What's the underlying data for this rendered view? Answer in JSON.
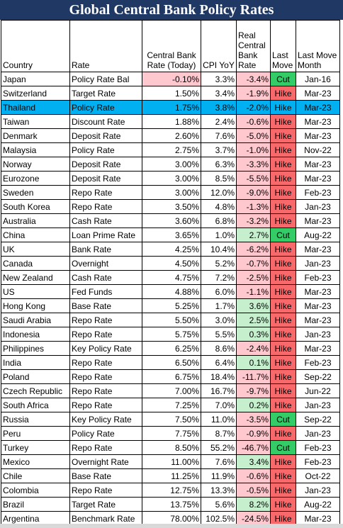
{
  "title": "Global Central Bank Policy Rates",
  "headers": {
    "country": "Country",
    "rate": "Rate",
    "cb_rate": "Central Bank Rate (Today)",
    "cpi": "CPI YoY",
    "real_rate": "Real Central Bank Rate",
    "last_move": "Last Move",
    "last_move_month": "Last Move Month"
  },
  "colors": {
    "title_bg": "#1f3864",
    "negative_real": "#ffc7ce",
    "positive_real": "#c6efce",
    "hike": "#f8696b",
    "cut": "#33cc66",
    "highlight_row": "#00b0f0"
  },
  "rows": [
    {
      "country": "Japan",
      "rate": "Policy Rate Bal",
      "cb_rate": "-0.10%",
      "cpi": "3.3%",
      "real": "-3.4%",
      "move": "Cut",
      "month": "Jan-16"
    },
    {
      "country": "Switzerland",
      "rate": "Target Rate",
      "cb_rate": "1.50%",
      "cpi": "3.4%",
      "real": "-1.9%",
      "move": "Hike",
      "month": "Mar-23"
    },
    {
      "country": "Thailand",
      "rate": "Policy Rate",
      "cb_rate": "1.75%",
      "cpi": "3.8%",
      "real": "-2.0%",
      "move": "Hike",
      "month": "Mar-23"
    },
    {
      "country": "Taiwan",
      "rate": "Discount Rate",
      "cb_rate": "1.88%",
      "cpi": "2.4%",
      "real": "-0.6%",
      "move": "Hike",
      "month": "Mar-23"
    },
    {
      "country": "Denmark",
      "rate": "Deposit Rate",
      "cb_rate": "2.60%",
      "cpi": "7.6%",
      "real": "-5.0%",
      "move": "Hike",
      "month": "Mar-23"
    },
    {
      "country": "Malaysia",
      "rate": "Policy Rate",
      "cb_rate": "2.75%",
      "cpi": "3.7%",
      "real": "-1.0%",
      "move": "Hike",
      "month": "Nov-22"
    },
    {
      "country": "Norway",
      "rate": "Deposit Rate",
      "cb_rate": "3.00%",
      "cpi": "6.3%",
      "real": "-3.3%",
      "move": "Hike",
      "month": "Mar-23"
    },
    {
      "country": "Eurozone",
      "rate": "Deposit Rate",
      "cb_rate": "3.00%",
      "cpi": "8.5%",
      "real": "-5.5%",
      "move": "Hike",
      "month": "Mar-23"
    },
    {
      "country": "Sweden",
      "rate": "Repo Rate",
      "cb_rate": "3.00%",
      "cpi": "12.0%",
      "real": "-9.0%",
      "move": "Hike",
      "month": "Feb-23"
    },
    {
      "country": "South Korea",
      "rate": "Repo Rate",
      "cb_rate": "3.50%",
      "cpi": "4.8%",
      "real": "-1.3%",
      "move": "Hike",
      "month": "Jan-23"
    },
    {
      "country": "Australia",
      "rate": "Cash Rate",
      "cb_rate": "3.60%",
      "cpi": "6.8%",
      "real": "-3.2%",
      "move": "Hike",
      "month": "Mar-23"
    },
    {
      "country": "China",
      "rate": "Loan Prime Rate",
      "cb_rate": "3.65%",
      "cpi": "1.0%",
      "real": "2.7%",
      "move": "Cut",
      "month": "Aug-22"
    },
    {
      "country": "UK",
      "rate": "Bank Rate",
      "cb_rate": "4.25%",
      "cpi": "10.4%",
      "real": "-6.2%",
      "move": "Hike",
      "month": "Mar-23"
    },
    {
      "country": "Canada",
      "rate": "Overnight",
      "cb_rate": "4.50%",
      "cpi": "5.2%",
      "real": "-0.7%",
      "move": "Hike",
      "month": "Jan-23"
    },
    {
      "country": "New Zealand",
      "rate": "Cash Rate",
      "cb_rate": "4.75%",
      "cpi": "7.2%",
      "real": "-2.5%",
      "move": "Hike",
      "month": "Feb-23"
    },
    {
      "country": "US",
      "rate": "Fed Funds",
      "cb_rate": "4.88%",
      "cpi": "6.0%",
      "real": "-1.1%",
      "move": "Hike",
      "month": "Mar-23"
    },
    {
      "country": "Hong Kong",
      "rate": "Base Rate",
      "cb_rate": "5.25%",
      "cpi": "1.7%",
      "real": "3.6%",
      "move": "Hike",
      "month": "Mar-23"
    },
    {
      "country": "Saudi Arabia",
      "rate": "Repo Rate",
      "cb_rate": "5.50%",
      "cpi": "3.0%",
      "real": "2.5%",
      "move": "Hike",
      "month": "Mar-23"
    },
    {
      "country": "Indonesia",
      "rate": "Repo Rate",
      "cb_rate": "5.75%",
      "cpi": "5.5%",
      "real": "0.3%",
      "move": "Hike",
      "month": "Jan-23"
    },
    {
      "country": "Philippines",
      "rate": "Key Policy Rate",
      "cb_rate": "6.25%",
      "cpi": "8.6%",
      "real": "-2.4%",
      "move": "Hike",
      "month": "Mar-23"
    },
    {
      "country": "India",
      "rate": "Repo Rate",
      "cb_rate": "6.50%",
      "cpi": "6.4%",
      "real": "0.1%",
      "move": "Hike",
      "month": "Feb-23"
    },
    {
      "country": "Poland",
      "rate": "Repo Rate",
      "cb_rate": "6.75%",
      "cpi": "18.4%",
      "real": "-11.7%",
      "move": "Hike",
      "month": "Sep-22"
    },
    {
      "country": "Czech Republic",
      "rate": "Repo Rate",
      "cb_rate": "7.00%",
      "cpi": "16.7%",
      "real": "-9.7%",
      "move": "Hike",
      "month": "Jun-22"
    },
    {
      "country": "South Africa",
      "rate": "Repo Rate",
      "cb_rate": "7.25%",
      "cpi": "7.0%",
      "real": "0.2%",
      "move": "Hike",
      "month": "Jan-23"
    },
    {
      "country": "Russia",
      "rate": "Key Policy Rate",
      "cb_rate": "7.50%",
      "cpi": "11.0%",
      "real": "-3.5%",
      "move": "Cut",
      "month": "Sep-22"
    },
    {
      "country": "Peru",
      "rate": "Policy Rate",
      "cb_rate": "7.75%",
      "cpi": "8.7%",
      "real": "-0.9%",
      "move": "Hike",
      "month": "Jan-23"
    },
    {
      "country": "Turkey",
      "rate": "Repo Rate",
      "cb_rate": "8.50%",
      "cpi": "55.2%",
      "real": "-46.7%",
      "move": "Cut",
      "month": "Feb-23"
    },
    {
      "country": "Mexico",
      "rate": "Overnight Rate",
      "cb_rate": "11.00%",
      "cpi": "7.6%",
      "real": "3.4%",
      "move": "Hike",
      "month": "Feb-23"
    },
    {
      "country": "Chile",
      "rate": "Base Rate",
      "cb_rate": "11.25%",
      "cpi": "11.9%",
      "real": "-0.6%",
      "move": "Hike",
      "month": "Oct-22"
    },
    {
      "country": "Colombia",
      "rate": "Repo Rate",
      "cb_rate": "12.75%",
      "cpi": "13.3%",
      "real": "-0.5%",
      "move": "Hike",
      "month": "Jan-23"
    },
    {
      "country": "Brazil",
      "rate": "Target Rate",
      "cb_rate": "13.75%",
      "cpi": "5.6%",
      "real": "8.2%",
      "move": "Hike",
      "month": "Aug-22"
    },
    {
      "country": "Argentina",
      "rate": "Benchmark Rate",
      "cb_rate": "78.00%",
      "cpi": "102.5%",
      "real": "-24.5%",
      "move": "Hike",
      "month": "Mar-23"
    }
  ],
  "highlighted_country": "Thailand"
}
